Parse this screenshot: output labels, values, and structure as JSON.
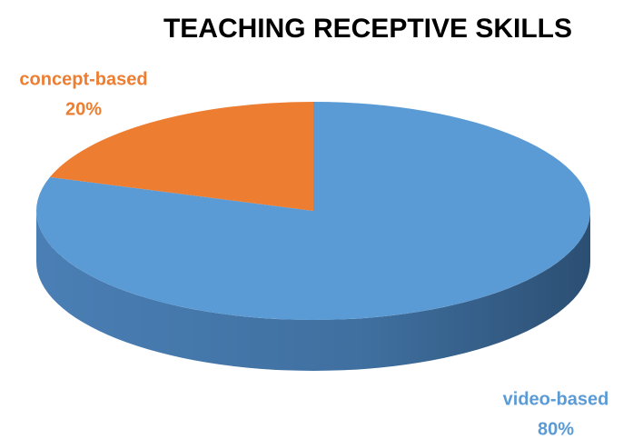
{
  "chart_data": {
    "type": "pie",
    "title": "TEACHING RECEPTIVE SKILLS",
    "categories": [
      "video-based",
      "concept-based"
    ],
    "values": [
      80,
      20
    ],
    "value_labels": [
      "80%",
      "20%"
    ],
    "colors": [
      "#5b9bd5",
      "#ed7d31"
    ]
  }
}
